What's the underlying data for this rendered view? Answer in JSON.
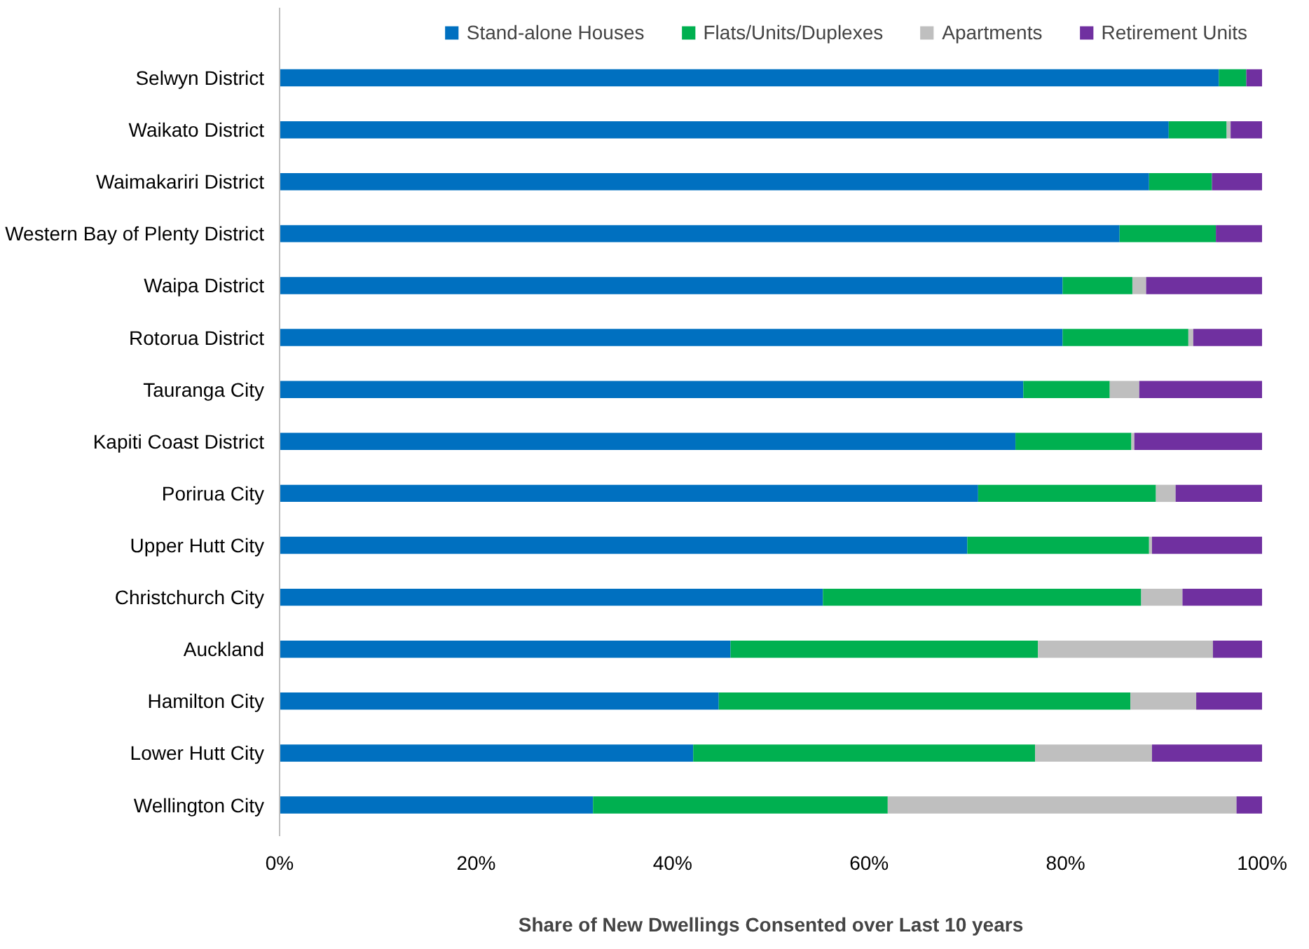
{
  "chart_data": {
    "type": "bar",
    "orientation": "horizontal",
    "stacked": true,
    "legend": "top",
    "grid": false,
    "xlabel": "Share of New Dwellings Consented over Last 10 years",
    "categories": [
      "Selwyn District",
      "Waikato District",
      "Waimakariri District",
      "Western Bay of Plenty District",
      "Waipa District",
      "Rotorua District",
      "Tauranga City",
      "Kapiti Coast District",
      "Porirua City",
      "Upper Hutt City",
      "Christchurch City",
      "Auckland",
      "Hamilton City",
      "Lower Hutt City",
      "Wellington City"
    ],
    "xlim": [
      0,
      100
    ],
    "xticks": [
      {
        "value": 0,
        "label": "0%"
      },
      {
        "value": 20,
        "label": "20%"
      },
      {
        "value": 40,
        "label": "40%"
      },
      {
        "value": 60,
        "label": "60%"
      },
      {
        "value": 80,
        "label": "80%"
      },
      {
        "value": 100,
        "label": "100%"
      }
    ],
    "series": [
      {
        "name": "Stand-alone Houses",
        "color": "#0070c0",
        "values": [
          95.6,
          90.5,
          88.5,
          85.5,
          79.7,
          79.7,
          75.7,
          74.9,
          71.1,
          70.0,
          55.3,
          45.9,
          44.7,
          42.1,
          31.9
        ]
      },
      {
        "name": "Flats/Units/Duplexes",
        "color": "#00b050",
        "values": [
          2.8,
          5.9,
          6.4,
          9.8,
          7.1,
          12.8,
          8.8,
          11.8,
          18.1,
          18.5,
          32.4,
          31.3,
          41.9,
          34.8,
          30.0
        ]
      },
      {
        "name": "Apartments",
        "color": "#bfbfbf",
        "values": [
          0,
          0.4,
          0,
          0,
          1.4,
          0.5,
          3.0,
          0.3,
          2.0,
          0.3,
          4.2,
          17.8,
          6.7,
          11.9,
          35.5
        ]
      },
      {
        "name": "Retirement Units",
        "color": "#7030a0",
        "values": [
          1.6,
          3.2,
          5.1,
          4.7,
          11.8,
          7.0,
          12.5,
          13.0,
          8.8,
          11.2,
          8.1,
          5.0,
          6.7,
          11.2,
          2.6
        ]
      }
    ]
  }
}
